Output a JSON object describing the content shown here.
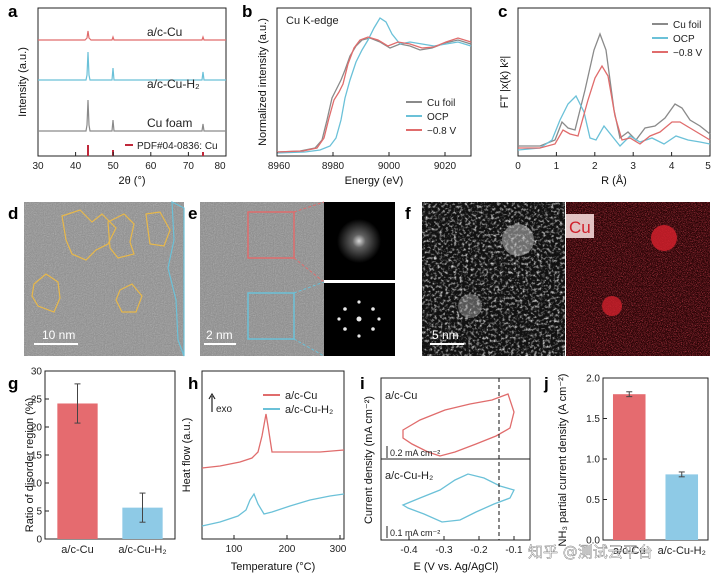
{
  "panels": {
    "a": {
      "label": "a",
      "xlabel": "2θ (°)",
      "ylabel": "Intensity (a.u.)",
      "xticks": [
        "30",
        "40",
        "50",
        "60",
        "70",
        "80"
      ],
      "traces": [
        {
          "name": "a/c-Cu",
          "color": "#e06c6c"
        },
        {
          "name": "a/c-Cu-H₂",
          "color": "#6bc1d8"
        },
        {
          "name": "Cu foam",
          "color": "#8a8a8a"
        }
      ],
      "reference": {
        "name": "PDF#04-0836: Cu",
        "color": "#c0283a",
        "positions": [
          43.3,
          50.4,
          74.1
        ]
      }
    },
    "b": {
      "label": "b",
      "title": "Cu K-edge",
      "xlabel": "Energy (eV)",
      "ylabel": "Normalized intensity (a.u.)",
      "xticks": [
        "8960",
        "8980",
        "9000",
        "9020"
      ],
      "legend": [
        {
          "name": "Cu foil",
          "color": "#8a8a8a"
        },
        {
          "name": "OCP",
          "color": "#6bc1d8"
        },
        {
          "name": "−0.8 V",
          "color": "#e06c6c"
        }
      ]
    },
    "c": {
      "label": "c",
      "xlabel": "R (Å)",
      "ylabel": "FT |x(k) k²|",
      "xticks": [
        "0",
        "1",
        "2",
        "3",
        "4",
        "5"
      ],
      "legend": [
        {
          "name": "Cu foil",
          "color": "#8a8a8a"
        },
        {
          "name": "OCP",
          "color": "#6bc1d8"
        },
        {
          "name": "−0.8 V",
          "color": "#e06c6c"
        }
      ]
    },
    "d": {
      "label": "d",
      "scale": "10 nm"
    },
    "e": {
      "label": "e",
      "scale": "2 nm"
    },
    "f": {
      "label": "f",
      "scale": "5 nm",
      "element": "Cu"
    },
    "g": {
      "label": "g"
    },
    "h": {
      "label": "h",
      "xlabel": "Temperature (°C)",
      "ylabel": "Heat flow (a.u.)",
      "exo": "exo",
      "xticks": [
        "100",
        "200",
        "300"
      ],
      "legend": [
        {
          "name": "a/c-Cu",
          "color": "#e06c6c"
        },
        {
          "name": "a/c-Cu-H₂",
          "color": "#6bc1d8"
        }
      ]
    },
    "i": {
      "label": "i",
      "xlabel": "E (V vs. Ag/AgCl)",
      "ylabel": "Current density (mA cm⁻²)",
      "xticks": [
        "-0.4",
        "-0.3",
        "-0.2",
        "-0.1"
      ],
      "top_label": "a/c-Cu",
      "bottom_label": "a/c-Cu-H₂",
      "top_scale": "0.2 mA cm⁻²",
      "bottom_scale": "0.1 mA cm⁻²"
    },
    "j": {
      "label": "j"
    }
  },
  "chart_data": [
    {
      "panel": "g",
      "type": "bar",
      "categories": [
        "a/c-Cu",
        "a/c-Cu-H₂"
      ],
      "values": [
        24.2,
        5.6
      ],
      "errors": [
        3.5,
        2.6
      ],
      "colors": [
        "#e56b6f",
        "#8ecae6"
      ],
      "ylim": [
        0,
        30
      ],
      "yticks": [
        "0",
        "5",
        "10",
        "15",
        "20",
        "25",
        "30"
      ],
      "ylabel": "Ratio of disorder region (%)"
    },
    {
      "panel": "j",
      "type": "bar",
      "categories": [
        "a/c-Cu",
        "a/c-Cu-H₂"
      ],
      "values": [
        1.8,
        0.81
      ],
      "errors": [
        0.03,
        0.03
      ],
      "colors": [
        "#e56b6f",
        "#8ecae6"
      ],
      "ylim": [
        0,
        2.0
      ],
      "yticks": [
        "0.0",
        "0.5",
        "1.0",
        "1.5",
        "2.0"
      ],
      "ylabel": "NH₃ partial current density (A cm⁻²)"
    }
  ],
  "watermark": "知乎 @测试云平台"
}
